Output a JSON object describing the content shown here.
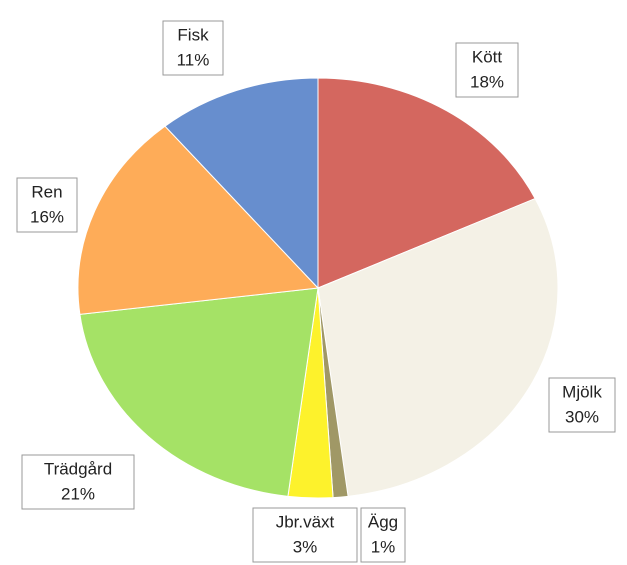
{
  "chart_data": {
    "type": "pie",
    "categories": [
      "Kött",
      "Mjölk",
      "Ägg",
      "Jbr.växt",
      "Trädgård",
      "Ren",
      "Fisk"
    ],
    "values": [
      18,
      30,
      1,
      3,
      21,
      16,
      11
    ],
    "value_labels": [
      "18%",
      "30%",
      "1%",
      "3%",
      "21%",
      "16%",
      "11%"
    ],
    "colors": [
      "#d4675f",
      "#f4f1e6",
      "#a09866",
      "#fdf22c",
      "#a5e266",
      "#feac58",
      "#678ece"
    ]
  }
}
